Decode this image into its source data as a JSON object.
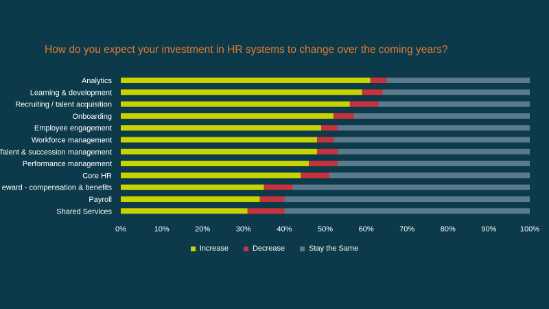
{
  "chart_data": {
    "type": "bar",
    "orientation": "horizontal",
    "stacked": true,
    "title": "How do you expect your investment in HR systems to change over the coming years?",
    "categories": [
      "Analytics",
      "Learning & development",
      "Recruiting / talent acquisition",
      "Onboarding",
      "Employee engagement",
      "Workforce management",
      "Talent & succession management",
      "Performance management",
      "Core HR",
      "eward - compensation & benefits",
      "Payroll",
      "Shared Services"
    ],
    "series": [
      {
        "name": "Increase",
        "color": "#c8d400",
        "values": [
          61,
          59,
          56,
          52,
          49,
          48,
          48,
          46,
          44,
          35,
          34,
          31
        ]
      },
      {
        "name": "Decrease",
        "color": "#c8323c",
        "values": [
          4,
          5,
          7,
          5,
          4,
          4,
          5,
          7,
          7,
          7,
          6,
          9
        ]
      },
      {
        "name": "Stay the Same",
        "color": "#5b7a8c",
        "values": [
          35,
          36,
          37,
          43,
          47,
          48,
          47,
          47,
          49,
          58,
          60,
          60
        ]
      }
    ],
    "xlim": [
      0,
      100
    ],
    "x_ticks": [
      "0%",
      "10%",
      "20%",
      "30%",
      "40%",
      "50%",
      "60%",
      "70%",
      "80%",
      "90%",
      "100%"
    ],
    "legend_position": "bottom",
    "grid": false
  }
}
